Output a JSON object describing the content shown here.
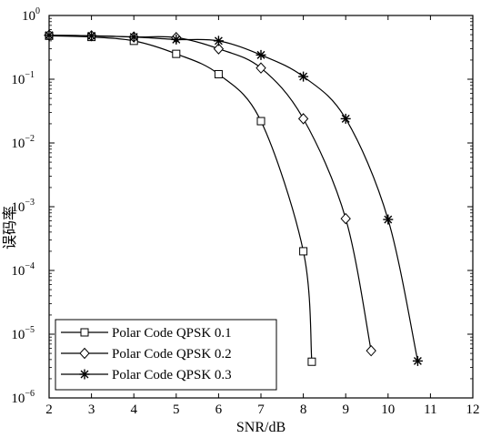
{
  "chart_data": {
    "type": "line",
    "title": "",
    "xlabel": "SNR/dB",
    "ylabel": "误码率",
    "xlim": [
      2,
      12
    ],
    "ylim": [
      1e-06,
      1
    ],
    "yscale": "log",
    "grid": false,
    "legend_position": "bottom-left",
    "x_ticks": [
      2,
      3,
      4,
      5,
      6,
      7,
      8,
      9,
      10,
      11,
      12
    ],
    "x_tick_labels": [
      "2",
      "3",
      "4",
      "5",
      "6",
      "7",
      "8",
      "9",
      "10",
      "11",
      "12"
    ],
    "y_ticks": [
      1,
      0.1,
      0.01,
      0.001,
      0.0001,
      1e-05,
      1e-06
    ],
    "y_tick_labels": [
      {
        "base": "10",
        "exp": "0"
      },
      {
        "base": "10",
        "exp": "−1"
      },
      {
        "base": "10",
        "exp": "−2"
      },
      {
        "base": "10",
        "exp": "−3"
      },
      {
        "base": "10",
        "exp": "−4"
      },
      {
        "base": "10",
        "exp": "−5"
      },
      {
        "base": "10",
        "exp": "−6"
      }
    ],
    "series": [
      {
        "name": "Polar  Code QPSK 0.1",
        "marker": "square",
        "x": [
          2,
          3,
          4,
          5,
          6,
          7,
          8,
          8.2
        ],
        "y": [
          0.48,
          0.46,
          0.4,
          0.25,
          0.12,
          0.022,
          0.0002,
          3.7e-06
        ]
      },
      {
        "name": "Polar Code QPSK 0.2",
        "marker": "diamond",
        "x": [
          2,
          3,
          4,
          5,
          6,
          7,
          8,
          9,
          9.6
        ],
        "y": [
          0.49,
          0.48,
          0.46,
          0.45,
          0.3,
          0.15,
          0.024,
          0.00065,
          5.5e-06
        ]
      },
      {
        "name": "Polar Code QPSK 0.3",
        "marker": "star",
        "x": [
          2,
          3,
          4,
          5,
          6,
          7,
          8,
          9,
          10,
          10.7
        ],
        "y": [
          0.49,
          0.48,
          0.46,
          0.42,
          0.4,
          0.24,
          0.11,
          0.024,
          0.00063,
          3.8e-06
        ]
      }
    ]
  }
}
